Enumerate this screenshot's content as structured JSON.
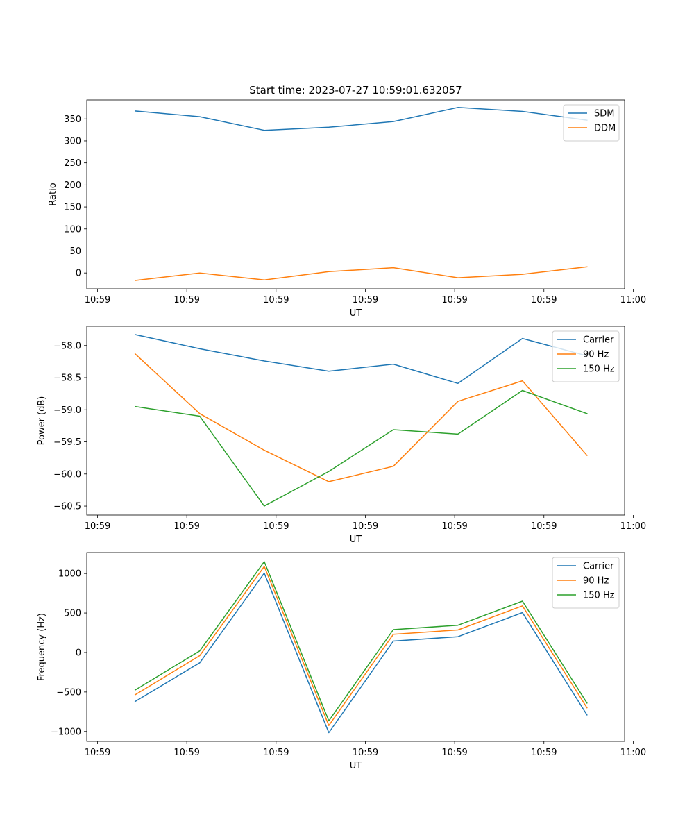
{
  "figure_title": "Start time: 2023-07-27 10:59:01.632057",
  "colors": {
    "blue": "#1f77b4",
    "orange": "#ff7f0e",
    "green": "#2ca02c"
  },
  "chart_data": [
    {
      "type": "line",
      "title": "Start time: 2023-07-27 10:59:01.632057",
      "xlabel": "UT",
      "ylabel": "Ratio",
      "xlim": [
        0,
        100
      ],
      "ylim": [
        -36,
        393
      ],
      "x": [
        9,
        21,
        33,
        45,
        57,
        69,
        81,
        93
      ],
      "x_tick_positions": [
        2,
        18.6,
        35.2,
        51.8,
        68.4,
        85,
        101.6
      ],
      "x_tick_labels": [
        "10:59",
        "10:59",
        "10:59",
        "10:59",
        "10:59",
        "10:59",
        "11:00"
      ],
      "y_ticks": [
        0,
        50,
        100,
        150,
        200,
        250,
        300,
        350
      ],
      "y_tick_labels": [
        "0",
        "50",
        "100",
        "150",
        "200",
        "250",
        "300",
        "350"
      ],
      "legend_position": "top-right",
      "series": [
        {
          "name": "SDM",
          "color": "#1f77b4",
          "values": [
            368,
            355,
            324,
            331,
            344,
            376,
            367,
            347
          ]
        },
        {
          "name": "DDM",
          "color": "#ff7f0e",
          "values": [
            -17,
            0,
            -16,
            3,
            12,
            -11,
            -3,
            14
          ]
        }
      ]
    },
    {
      "type": "line",
      "title": "",
      "xlabel": "UT",
      "ylabel": "Power (dB)",
      "xlim": [
        0,
        100
      ],
      "ylim": [
        -60.64,
        -57.7
      ],
      "x": [
        9,
        21,
        33,
        45,
        57,
        69,
        81,
        93
      ],
      "x_tick_positions": [
        2,
        18.6,
        35.2,
        51.8,
        68.4,
        85,
        101.6
      ],
      "x_tick_labels": [
        "10:59",
        "10:59",
        "10:59",
        "10:59",
        "10:59",
        "10:59",
        "11:00"
      ],
      "y_ticks": [
        -60.5,
        -60.0,
        -59.5,
        -59.0,
        -58.5,
        -58.0
      ],
      "y_tick_labels": [
        "−60.5",
        "−60.0",
        "−59.5",
        "−59.0",
        "−58.5",
        "−58.0"
      ],
      "legend_position": "top-right",
      "series": [
        {
          "name": "Carrier",
          "color": "#1f77b4",
          "values": [
            -57.83,
            -58.05,
            -58.24,
            -58.4,
            -58.29,
            -58.59,
            -57.89,
            -58.16
          ]
        },
        {
          "name": "90 Hz",
          "color": "#ff7f0e",
          "values": [
            -58.13,
            -59.06,
            -59.63,
            -60.12,
            -59.88,
            -58.87,
            -58.55,
            -59.71
          ]
        },
        {
          "name": "150 Hz",
          "color": "#2ca02c",
          "values": [
            -58.95,
            -59.1,
            -60.5,
            -59.96,
            -59.31,
            -59.38,
            -58.7,
            -59.06
          ]
        }
      ]
    },
    {
      "type": "line",
      "title": "",
      "xlabel": "UT",
      "ylabel": "Frequency (Hz)",
      "xlim": [
        0,
        100
      ],
      "ylim": [
        -1125,
        1265
      ],
      "x": [
        9,
        21,
        33,
        45,
        57,
        69,
        81,
        93
      ],
      "x_tick_positions": [
        2,
        18.6,
        35.2,
        51.8,
        68.4,
        85,
        101.6
      ],
      "x_tick_labels": [
        "10:59",
        "10:59",
        "10:59",
        "10:59",
        "10:59",
        "10:59",
        "11:00"
      ],
      "y_ticks": [
        -1000,
        -500,
        0,
        500,
        1000
      ],
      "y_tick_labels": [
        "−1000",
        "−500",
        "0",
        "500",
        "1000"
      ],
      "legend_position": "top-right",
      "series": [
        {
          "name": "Carrier",
          "color": "#1f77b4",
          "values": [
            -620,
            -130,
            1005,
            -1015,
            145,
            200,
            505,
            -790
          ]
        },
        {
          "name": "90 Hz",
          "color": "#ff7f0e",
          "values": [
            -535,
            -40,
            1090,
            -925,
            230,
            285,
            590,
            -700
          ]
        },
        {
          "name": "150 Hz",
          "color": "#2ca02c",
          "values": [
            -475,
            20,
            1150,
            -865,
            290,
            345,
            650,
            -640
          ]
        }
      ]
    }
  ]
}
